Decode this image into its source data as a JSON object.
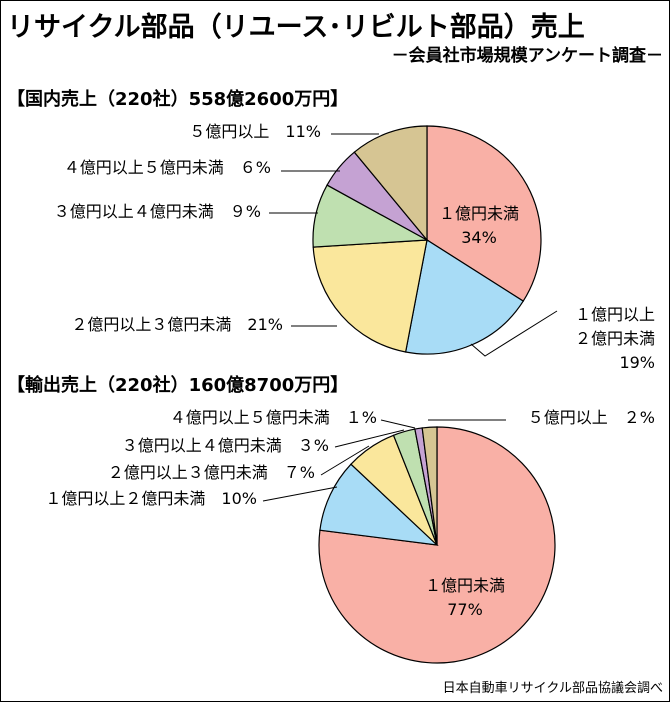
{
  "title": "リサイクル部品（リユース･リビルト部品）売上",
  "subtitle": "－会員社市場規模アンケート調査－",
  "source": "日本自動車リサイクル部品協議会調べ",
  "colors": {
    "slice_under1": "#f9b0a6",
    "slice_1to2": "#a8dcf6",
    "slice_2to3": "#fae79c",
    "slice_3to4": "#bfe0b0",
    "slice_4to5": "#c5a2d3",
    "slice_over5": "#d6c593"
  },
  "chart_data": [
    {
      "type": "pie",
      "title": "【国内売上（220社）558億2600万円】",
      "slices": [
        {
          "label": "１億円未満",
          "value": 34,
          "value_text": "34%"
        },
        {
          "label": "１億円以上２億円未満",
          "value": 19,
          "value_text": "19%"
        },
        {
          "label": "２億円以上３億円未満",
          "value": 21,
          "value_text": "21%"
        },
        {
          "label": "３億円以上４億円未満",
          "value": 9,
          "value_text": "９%"
        },
        {
          "label": "４億円以上５億円未満",
          "value": 6,
          "value_text": "６%"
        },
        {
          "label": "５億円以上",
          "value": 11,
          "value_text": "11%"
        }
      ]
    },
    {
      "type": "pie",
      "title": "【輸出売上（220社）160億8700万円】",
      "slices": [
        {
          "label": "１億円未満",
          "value": 77,
          "value_text": "77%"
        },
        {
          "label": "１億円以上２億円未満",
          "value": 10,
          "value_text": "10%"
        },
        {
          "label": "２億円以上３億円未満",
          "value": 7,
          "value_text": "７%"
        },
        {
          "label": "３億円以上４億円未満",
          "value": 3,
          "value_text": "３%"
        },
        {
          "label": "４億円以上５億円未満",
          "value": 1,
          "value_text": "１%"
        },
        {
          "label": "５億円以上",
          "value": 2,
          "value_text": "２%"
        }
      ]
    }
  ]
}
